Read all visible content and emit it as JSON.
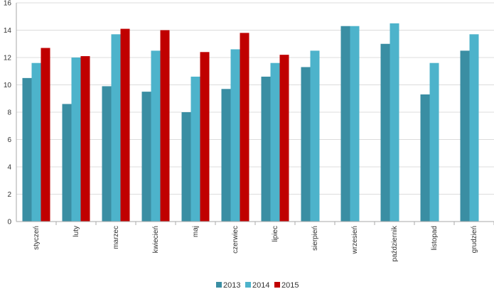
{
  "chart_data": {
    "type": "bar",
    "categories": [
      "styczeń",
      "luty",
      "marzec",
      "kwiecień",
      "maj",
      "czerwiec",
      "lipiec",
      "sierpień",
      "wrzesień",
      "październik",
      "listopad",
      "grudzień"
    ],
    "series": [
      {
        "name": "2013",
        "color": "#3a8ea3",
        "values": [
          10.5,
          8.6,
          9.9,
          9.5,
          8.0,
          9.7,
          10.6,
          11.3,
          14.3,
          13.0,
          9.3,
          12.5
        ]
      },
      {
        "name": "2014",
        "color": "#4db3cb",
        "values": [
          11.6,
          12.0,
          13.7,
          12.5,
          10.6,
          12.6,
          11.6,
          12.5,
          14.3,
          14.5,
          11.6,
          13.7
        ]
      },
      {
        "name": "2015",
        "color": "#c00000",
        "values": [
          12.7,
          12.1,
          14.1,
          14.0,
          12.4,
          13.8,
          12.2,
          null,
          null,
          null,
          null,
          null
        ]
      }
    ],
    "ylim": [
      0,
      16
    ],
    "yticks": [
      0,
      2,
      4,
      6,
      8,
      10,
      12,
      14,
      16
    ],
    "grid": true,
    "legend_position": "bottom-center"
  }
}
